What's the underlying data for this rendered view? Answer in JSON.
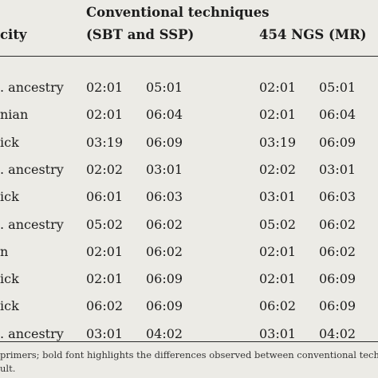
{
  "header": {
    "ethnicity": "city",
    "conventional_line1": "Conventional techniques",
    "conventional_line2": "(SBT and SSP)",
    "ngs": "454 NGS (MR)"
  },
  "rows": [
    {
      "ethnicity": ". ancestry",
      "c1": "02:01",
      "c2": "05:01",
      "n1": "02:01",
      "n2": "05:01"
    },
    {
      "ethnicity": "nian",
      "c1": "02:01",
      "c2": "06:04",
      "n1": "02:01",
      "n2": "06:04"
    },
    {
      "ethnicity": "ick",
      "c1": "03:19",
      "c2": "06:09",
      "n1": "03:19",
      "n2": "06:09"
    },
    {
      "ethnicity": ". ancestry",
      "c1": "02:02",
      "c2": "03:01",
      "n1": "02:02",
      "n2": "03:01"
    },
    {
      "ethnicity": "ick",
      "c1": "06:01",
      "c2": "06:03",
      "n1": "03:01",
      "n2": "06:03"
    },
    {
      "ethnicity": ". ancestry",
      "c1": "05:02",
      "c2": "06:02",
      "n1": "05:02",
      "n2": "06:02"
    },
    {
      "ethnicity": "n",
      "c1": "02:01",
      "c2": "06:02",
      "n1": "02:01",
      "n2": "06:02"
    },
    {
      "ethnicity": "ick",
      "c1": "02:01",
      "c2": "06:09",
      "n1": "02:01",
      "n2": "06:09"
    },
    {
      "ethnicity": "ick",
      "c1": "06:02",
      "c2": "06:09",
      "n1": "06:02",
      "n2": "06:09"
    },
    {
      "ethnicity": ". ancestry",
      "c1": "03:01",
      "c2": "04:02",
      "n1": "03:01",
      "n2": "04:02"
    }
  ],
  "footnote": {
    "line1": "primers; bold font highlights the differences observed between conventional techni",
    "line2": "ult."
  }
}
